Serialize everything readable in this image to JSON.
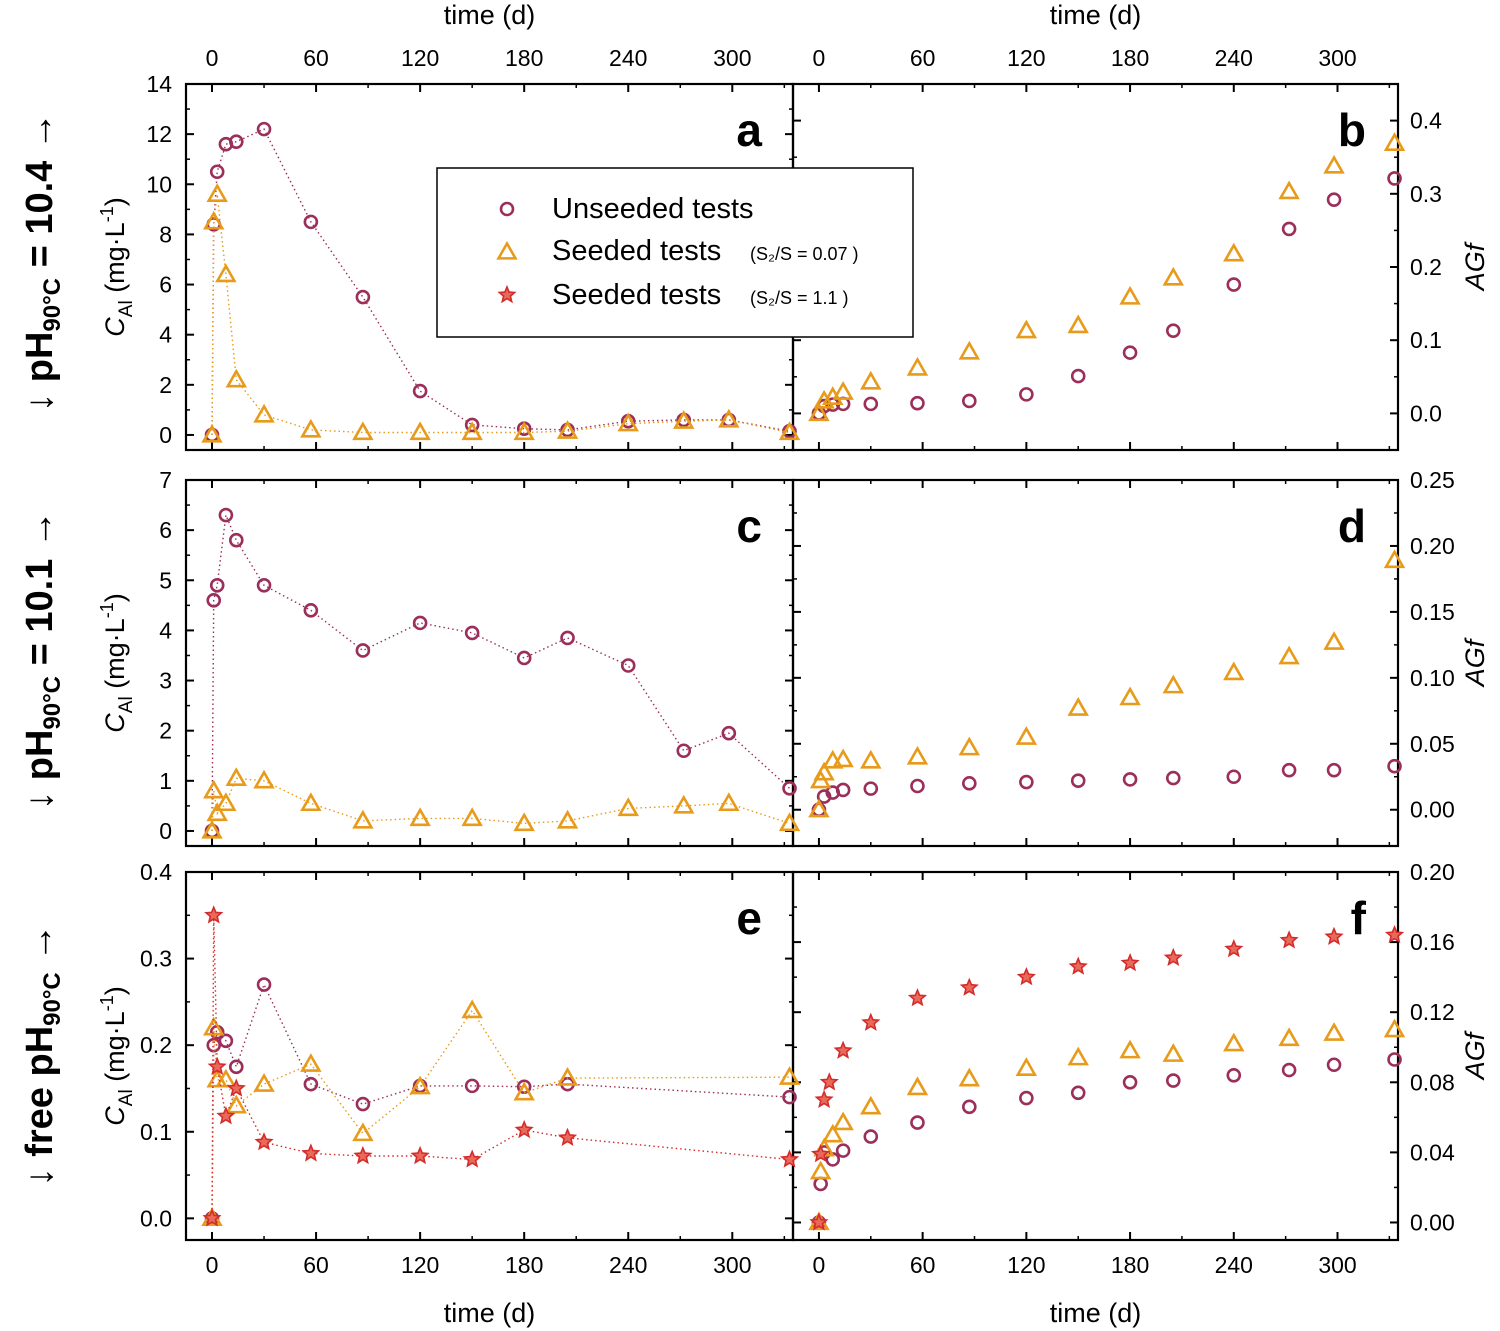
{
  "colors": {
    "unseeded": "#9b2f5a",
    "seeded_007": "#e89b1a",
    "seeded_11": "#d42b2b",
    "axes": "#000000"
  },
  "row_labels": [
    {
      "prefix": "↓ ",
      "main": "pH",
      "sub": "90°C",
      "suffix": " = 10.4 →"
    },
    {
      "prefix": "↓ ",
      "main": "pH",
      "sub": "90°C",
      "suffix": " = 10.1 →"
    },
    {
      "prefix": "↓ free ",
      "main": "pH",
      "sub": "90°C",
      "suffix": " →"
    }
  ],
  "legend": {
    "items": [
      {
        "marker": "circle",
        "label": "Unseeded tests",
        "note": ""
      },
      {
        "marker": "triangle",
        "label": "Seeded tests",
        "note": "(S₂/S = 0.07 )"
      },
      {
        "marker": "star",
        "label": "Seeded tests",
        "note": "(S₂/S = 1.1 )"
      }
    ]
  },
  "chart_data": [
    {
      "panel": "a",
      "type": "scatter",
      "xlabel": "time (d)",
      "ylabel": "C_Al (mg·L^-1)",
      "xlim": [
        -15,
        335
      ],
      "ylim": [
        -0.6,
        14
      ],
      "xticks": [
        0,
        60,
        120,
        180,
        240,
        300
      ],
      "xtick_labels": [
        "0",
        "60",
        "120",
        "180",
        "240",
        "300"
      ],
      "yticks": [
        0,
        2,
        4,
        6,
        8,
        10,
        12,
        14
      ],
      "ytick_labels": [
        "0",
        "2",
        "4",
        "6",
        "8",
        "10",
        "12",
        "14"
      ],
      "series": [
        {
          "name": "Unseeded tests",
          "marker": "circle",
          "x": [
            0,
            1,
            3,
            8,
            14,
            30,
            57,
            87,
            120,
            150,
            180,
            205,
            240,
            272,
            298,
            333
          ],
          "y": [
            0,
            8.4,
            10.5,
            11.6,
            11.7,
            12.2,
            8.5,
            5.5,
            1.75,
            0.4,
            0.25,
            0.2,
            0.55,
            0.6,
            0.6,
            0.15
          ]
        },
        {
          "name": "Seeded tests (S2/S = 0.07)",
          "marker": "triangle",
          "x": [
            0,
            1,
            3,
            8,
            14,
            30,
            57,
            87,
            120,
            150,
            180,
            205,
            240,
            272,
            298,
            333
          ],
          "y": [
            0,
            8.5,
            9.6,
            6.4,
            2.2,
            0.8,
            0.2,
            0.1,
            0.1,
            0.1,
            0.1,
            0.15,
            0.45,
            0.55,
            0.6,
            0.1
          ]
        }
      ]
    },
    {
      "panel": "b",
      "type": "scatter",
      "xlabel": "time (d)",
      "ylabel": "AGf",
      "xlim": [
        -15,
        335
      ],
      "ylim": [
        -0.05,
        0.45
      ],
      "xticks": [
        0,
        60,
        120,
        180,
        240,
        300
      ],
      "xtick_labels": [
        "0",
        "60",
        "120",
        "180",
        "240",
        "300"
      ],
      "yticks": [
        0,
        0.1,
        0.2,
        0.3,
        0.4
      ],
      "ytick_labels": [
        "0.0",
        "0.1",
        "0.2",
        "0.3",
        "0.4"
      ],
      "series": [
        {
          "name": "Unseeded tests",
          "marker": "circle",
          "x": [
            0,
            3,
            8,
            14,
            30,
            57,
            87,
            120,
            150,
            180,
            205,
            240,
            272,
            298,
            333
          ],
          "y": [
            0.0,
            0.01,
            0.012,
            0.013,
            0.013,
            0.014,
            0.017,
            0.026,
            0.051,
            0.083,
            0.113,
            0.176,
            0.252,
            0.292,
            0.321
          ]
        },
        {
          "name": "Seeded tests (S2/S = 0.07)",
          "marker": "triangle",
          "x": [
            0,
            3,
            8,
            14,
            30,
            57,
            87,
            120,
            150,
            180,
            205,
            240,
            272,
            298,
            333
          ],
          "y": [
            0.0,
            0.017,
            0.022,
            0.029,
            0.043,
            0.062,
            0.084,
            0.113,
            0.12,
            0.159,
            0.185,
            0.218,
            0.303,
            0.338,
            0.369
          ]
        }
      ]
    },
    {
      "panel": "c",
      "type": "scatter",
      "xlabel": "time (d)",
      "ylabel": "C_Al (mg·L^-1)",
      "xlim": [
        -15,
        335
      ],
      "ylim": [
        -0.3,
        7
      ],
      "xticks": [
        0,
        60,
        120,
        180,
        240,
        300
      ],
      "xtick_labels": [
        "0",
        "60",
        "120",
        "180",
        "240",
        "300"
      ],
      "yticks": [
        0,
        1,
        2,
        3,
        4,
        5,
        6,
        7
      ],
      "ytick_labels": [
        "0",
        "1",
        "2",
        "3",
        "4",
        "5",
        "6",
        "7"
      ],
      "series": [
        {
          "name": "Unseeded tests",
          "marker": "circle",
          "x": [
            0,
            1,
            3,
            8,
            14,
            30,
            57,
            87,
            120,
            150,
            180,
            205,
            240,
            272,
            298,
            333
          ],
          "y": [
            0,
            4.6,
            4.9,
            6.3,
            5.8,
            4.9,
            4.4,
            3.6,
            4.15,
            3.95,
            3.45,
            3.85,
            3.3,
            1.6,
            1.95,
            0.85
          ]
        },
        {
          "name": "Seeded tests (S2/S = 0.07)",
          "marker": "triangle",
          "x": [
            0,
            1,
            3,
            8,
            14,
            30,
            57,
            87,
            120,
            150,
            180,
            205,
            240,
            272,
            298,
            333
          ],
          "y": [
            0,
            0.8,
            0.35,
            0.55,
            1.05,
            1.0,
            0.55,
            0.2,
            0.25,
            0.25,
            0.15,
            0.2,
            0.45,
            0.5,
            0.55,
            0.15
          ]
        }
      ]
    },
    {
      "panel": "d",
      "type": "scatter",
      "xlabel": "time (d)",
      "ylabel": "AGf",
      "xlim": [
        -15,
        335
      ],
      "ylim": [
        -0.0275,
        0.25
      ],
      "xticks": [
        0,
        60,
        120,
        180,
        240,
        300
      ],
      "xtick_labels": [
        "0",
        "60",
        "120",
        "180",
        "240",
        "300"
      ],
      "yticks": [
        0,
        0.05,
        0.1,
        0.15,
        0.2,
        0.25
      ],
      "ytick_labels": [
        "0.00",
        "0.05",
        "0.10",
        "0.15",
        "0.20",
        "0.25"
      ],
      "series": [
        {
          "name": "Unseeded tests",
          "marker": "circle",
          "x": [
            0,
            3,
            8,
            14,
            30,
            57,
            87,
            120,
            150,
            180,
            205,
            240,
            272,
            298,
            333
          ],
          "y": [
            0.0,
            0.01,
            0.013,
            0.015,
            0.016,
            0.018,
            0.02,
            0.021,
            0.022,
            0.023,
            0.024,
            0.025,
            0.03,
            0.03,
            0.033
          ]
        },
        {
          "name": "Seeded tests (S2/S = 0.07)",
          "marker": "triangle",
          "x": [
            0,
            1,
            3,
            8,
            14,
            30,
            57,
            87,
            120,
            150,
            180,
            205,
            240,
            272,
            298,
            333
          ],
          "y": [
            0.0,
            0.022,
            0.028,
            0.037,
            0.038,
            0.037,
            0.04,
            0.047,
            0.055,
            0.077,
            0.085,
            0.094,
            0.104,
            0.116,
            0.127,
            0.189
          ]
        }
      ]
    },
    {
      "panel": "e",
      "type": "scatter",
      "xlabel": "time (d)",
      "ylabel": "C_Al (mg·L^-1)",
      "xlim": [
        -15,
        335
      ],
      "ylim": [
        -0.025,
        0.4
      ],
      "xticks": [
        0,
        60,
        120,
        180,
        240,
        300
      ],
      "xtick_labels": [
        "0",
        "60",
        "120",
        "180",
        "240",
        "300"
      ],
      "yticks": [
        0,
        0.1,
        0.2,
        0.3,
        0.4
      ],
      "ytick_labels": [
        "0.0",
        "0.1",
        "0.2",
        "0.3",
        "0.4"
      ],
      "series": [
        {
          "name": "Unseeded tests",
          "marker": "circle",
          "x": [
            0,
            1,
            3,
            8,
            14,
            30,
            57,
            87,
            120,
            150,
            180,
            205,
            333
          ],
          "y": [
            0,
            0.2,
            0.215,
            0.205,
            0.175,
            0.27,
            0.155,
            0.132,
            0.153,
            0.153,
            0.152,
            0.155,
            0.14
          ]
        },
        {
          "name": "Seeded tests (S2/S = 0.07)",
          "marker": "triangle",
          "x": [
            0,
            1,
            3,
            8,
            14,
            30,
            57,
            87,
            120,
            150,
            180,
            205,
            333
          ],
          "y": [
            0,
            0.22,
            0.16,
            0.16,
            0.13,
            0.155,
            0.178,
            0.098,
            0.152,
            0.24,
            0.145,
            0.162,
            0.163
          ]
        },
        {
          "name": "Seeded tests (S2/S = 1.1)",
          "marker": "star",
          "x": [
            0,
            1,
            3,
            8,
            14,
            30,
            57,
            87,
            120,
            150,
            180,
            205,
            333
          ],
          "y": [
            0,
            0.35,
            0.175,
            0.118,
            0.15,
            0.088,
            0.075,
            0.072,
            0.072,
            0.068,
            0.102,
            0.093,
            0.068
          ]
        }
      ]
    },
    {
      "panel": "f",
      "type": "scatter",
      "xlabel": "time (d)",
      "ylabel": "AGf",
      "xlim": [
        -15,
        335
      ],
      "ylim": [
        -0.01,
        0.2
      ],
      "xticks": [
        0,
        60,
        120,
        180,
        240,
        300
      ],
      "xtick_labels": [
        "0",
        "60",
        "120",
        "180",
        "240",
        "300"
      ],
      "yticks": [
        0,
        0.04,
        0.08,
        0.12,
        0.16,
        0.2
      ],
      "ytick_labels": [
        "0.00",
        "0.04",
        "0.08",
        "0.12",
        "0.16",
        "0.20"
      ],
      "series": [
        {
          "name": "Unseeded tests",
          "marker": "circle",
          "x": [
            0,
            1,
            3,
            8,
            14,
            30,
            57,
            87,
            120,
            150,
            180,
            205,
            240,
            272,
            298,
            333
          ],
          "y": [
            0.0,
            0.022,
            0.04,
            0.036,
            0.041,
            0.049,
            0.057,
            0.066,
            0.071,
            0.074,
            0.08,
            0.081,
            0.084,
            0.087,
            0.09,
            0.093
          ]
        },
        {
          "name": "Seeded tests (S2/S = 0.07)",
          "marker": "triangle",
          "x": [
            0,
            1,
            3,
            8,
            14,
            30,
            57,
            87,
            120,
            150,
            180,
            205,
            240,
            272,
            298,
            333
          ],
          "y": [
            0.0,
            0.029,
            0.042,
            0.05,
            0.057,
            0.066,
            0.077,
            0.082,
            0.088,
            0.094,
            0.098,
            0.096,
            0.102,
            0.105,
            0.108,
            0.11
          ]
        },
        {
          "name": "Seeded tests (S2/S = 1.1)",
          "marker": "star",
          "x": [
            0,
            1,
            3,
            6,
            14,
            30,
            57,
            87,
            120,
            150,
            180,
            205,
            240,
            272,
            298,
            333
          ],
          "y": [
            0.0,
            0.039,
            0.07,
            0.08,
            0.098,
            0.114,
            0.128,
            0.134,
            0.14,
            0.146,
            0.148,
            0.151,
            0.156,
            0.161,
            0.163,
            0.164
          ]
        }
      ]
    }
  ]
}
